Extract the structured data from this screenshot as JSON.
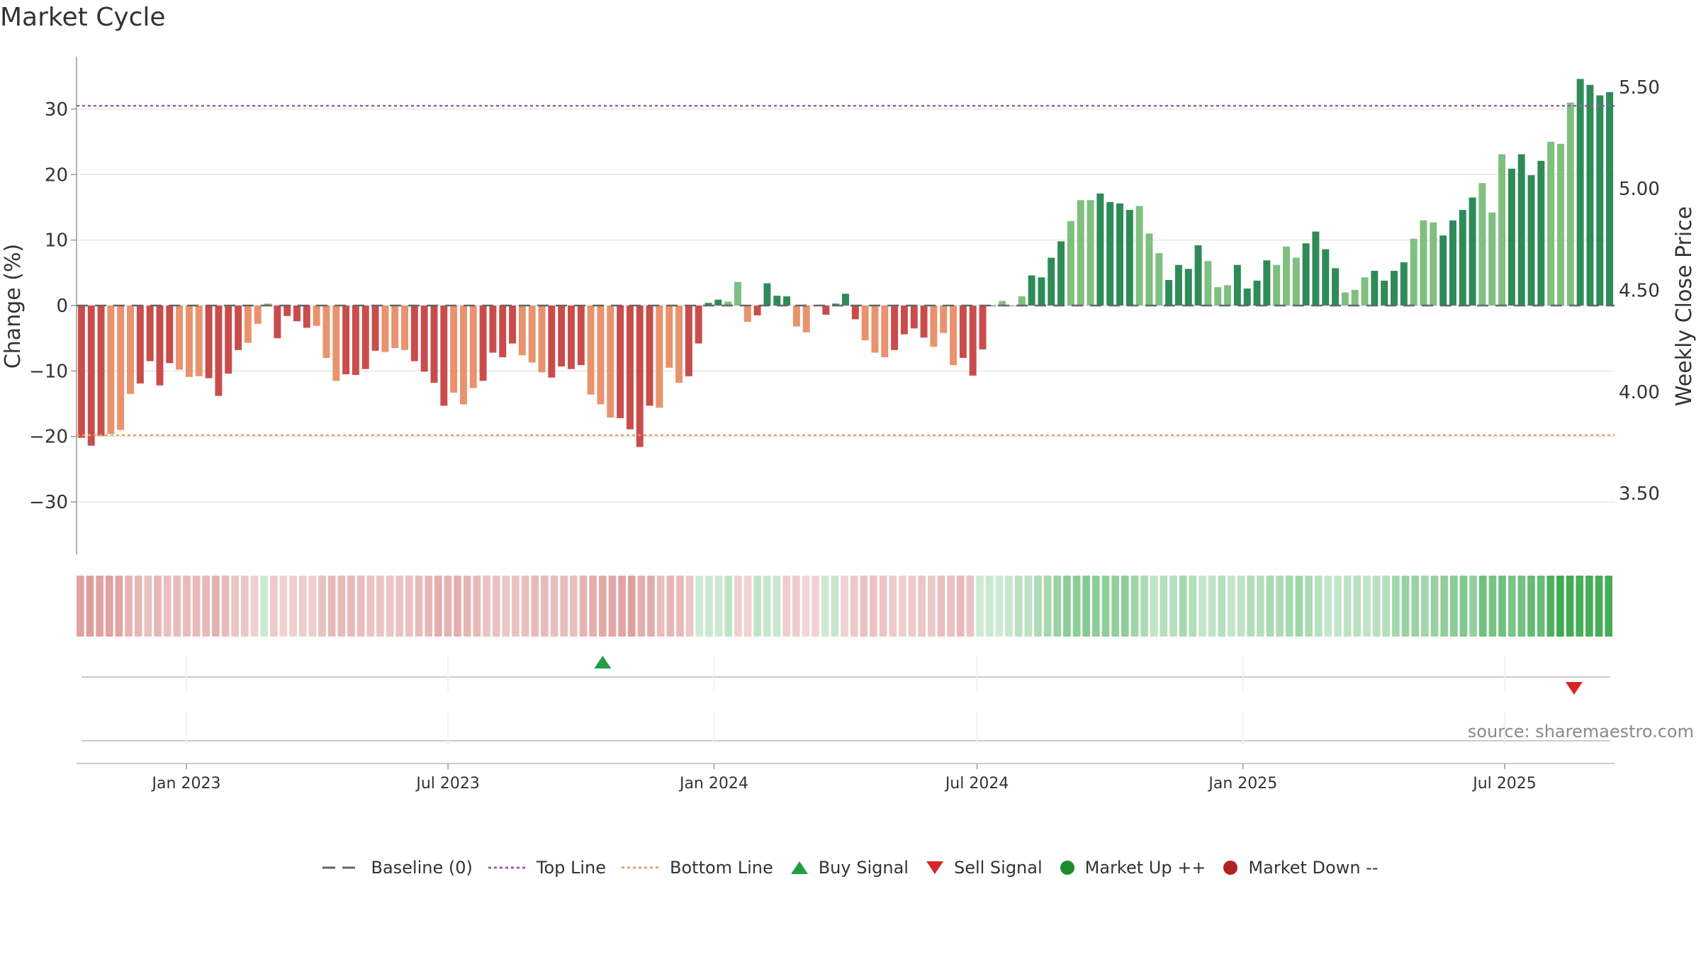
{
  "title": "Market Cycle",
  "source": "source: sharemaestro.com",
  "colors": {
    "neg_dark": "#c94c4c",
    "neg_light": "#e8936e",
    "pos_dark": "#2e8b57",
    "pos_light": "#7fbf7f",
    "top_line": "#9b59b6",
    "bottom_line": "#f0a060",
    "buy": "#1f9e45",
    "sell": "#d62728",
    "market_up": "#1f8b2f",
    "market_down": "#b22222"
  },
  "chart_data": {
    "type": "bar",
    "title": "Market Cycle",
    "ylabel_left": "Change (%)",
    "ylabel_right": "Weekly Close Price",
    "ylim_left": [
      -38,
      38
    ],
    "ylim_right": [
      3.2,
      5.65
    ],
    "yticks_left": [
      "30",
      "20",
      "10",
      "0",
      "−10",
      "−20",
      "−30"
    ],
    "yticks_right": [
      "5.50",
      "5.00",
      "4.50",
      "4.00",
      "3.50"
    ],
    "top_line": 30.5,
    "bottom_line": -19.8,
    "x_start": "2022-10-17",
    "x_end": "2025-09-15",
    "xticks": [
      {
        "label": "Jan 2023",
        "date": "2023-01-01"
      },
      {
        "label": "Jul 2023",
        "date": "2023-07-01"
      },
      {
        "label": "Jan 2024",
        "date": "2024-01-01"
      },
      {
        "label": "Jul 2024",
        "date": "2024-07-01"
      },
      {
        "label": "Jan 2025",
        "date": "2025-01-01"
      },
      {
        "label": "Jul 2025",
        "date": "2025-07-01"
      }
    ],
    "values": [
      -20.2,
      -21.4,
      -19.9,
      -19.6,
      -19.0,
      -13.5,
      -11.9,
      -8.5,
      -12.2,
      -8.8,
      -9.8,
      -10.9,
      -10.8,
      -11.1,
      -13.8,
      -10.4,
      -6.8,
      -5.7,
      -2.8,
      0.3,
      -5.0,
      -1.6,
      -2.4,
      -3.4,
      -3.1,
      -8.0,
      -11.5,
      -10.5,
      -10.6,
      -9.7,
      -6.9,
      -7.1,
      -6.5,
      -6.8,
      -8.5,
      -10.1,
      -11.8,
      -15.3,
      -13.3,
      -15.1,
      -12.6,
      -11.5,
      -7.2,
      -7.9,
      -5.8,
      -7.6,
      -8.7,
      -10.2,
      -11.0,
      -9.3,
      -9.7,
      -9.1,
      -13.6,
      -15.1,
      -17.1,
      -17.2,
      -18.9,
      -21.6,
      -15.3,
      -15.6,
      -9.5,
      -11.8,
      -10.8,
      -5.8,
      0.4,
      0.9,
      0.6,
      3.6,
      -2.5,
      -1.5,
      3.4,
      1.5,
      1.4,
      -3.2,
      -4.1,
      -0.1,
      -1.4,
      0.3,
      1.8,
      -2.1,
      -5.3,
      -7.2,
      -7.9,
      -6.8,
      -4.4,
      -3.5,
      -4.9,
      -6.3,
      -4.2,
      -9.1,
      -8.0,
      -10.7,
      -6.7,
      0.0,
      0.7,
      0.0,
      1.4,
      4.6,
      4.3,
      7.3,
      9.8,
      12.9,
      16.1,
      16.1,
      17.1,
      15.8,
      15.6,
      14.6,
      15.2,
      11.0,
      8.0,
      3.9,
      6.2,
      5.6,
      9.2,
      6.8,
      2.8,
      3.1,
      6.2,
      2.6,
      3.8,
      6.9,
      6.2,
      9.0,
      7.3,
      9.5,
      11.3,
      8.6,
      5.7,
      2.0,
      2.4,
      4.3,
      5.3,
      3.8,
      5.3,
      6.6,
      10.2,
      13.0,
      12.7,
      10.7,
      13.0,
      14.6,
      16.5,
      18.7,
      14.2,
      23.1,
      20.9,
      23.1,
      19.9,
      22.1,
      25.0,
      24.7,
      31.0,
      34.6,
      33.7,
      32.1,
      32.6
    ],
    "cycle_signal": [
      -1,
      -1,
      -1,
      -1,
      -1,
      -1,
      -1,
      -1,
      -1,
      -1,
      -1,
      -1,
      -1,
      -1,
      -1,
      -1,
      -1,
      -1,
      -1,
      1,
      -1,
      -1,
      -1,
      -1,
      -1,
      -1,
      -1,
      -1,
      -1,
      -1,
      -1,
      -1,
      -1,
      -1,
      -1,
      -1,
      -1,
      -1,
      -1,
      -1,
      -1,
      -1,
      -1,
      -1,
      -1,
      -1,
      -1,
      -1,
      -1,
      -1,
      -1,
      -1,
      -1,
      -1,
      -1,
      -1,
      -1,
      -1,
      -1,
      -1,
      -1,
      -1,
      -1,
      -1,
      1,
      1,
      1,
      1,
      -1,
      -1,
      1,
      1,
      1,
      -1,
      -1,
      -1,
      -1,
      1,
      1,
      -1,
      -1,
      -1,
      -1,
      -1,
      -1,
      -1,
      -1,
      -1,
      -1,
      -1,
      -1,
      -1,
      -1,
      1,
      1,
      1,
      1,
      1,
      1,
      1,
      1,
      1,
      1,
      1,
      1,
      1,
      1,
      1,
      1,
      1,
      1,
      1,
      1,
      1,
      1,
      1,
      1,
      1,
      1,
      1,
      1,
      1,
      1,
      1,
      1,
      1,
      1,
      1,
      1,
      1,
      1,
      1,
      1,
      1,
      1,
      1,
      1,
      1,
      1,
      1,
      1,
      1,
      1,
      1,
      1,
      1,
      1,
      1,
      1,
      1,
      1,
      1,
      1,
      1,
      1,
      1,
      1,
      1,
      1
    ],
    "signals": [
      {
        "type": "buy",
        "date": "2023-10-16"
      },
      {
        "type": "sell",
        "date": "2025-08-18"
      }
    ],
    "heat_strip": "weekly cycle intensity, red = down phase, green = up phase",
    "legend": [
      {
        "label": "Baseline (0)",
        "style": "dashed-gray"
      },
      {
        "label": "Top Line",
        "style": "dotted-purple"
      },
      {
        "label": "Bottom Line",
        "style": "dotted-orange"
      },
      {
        "label": "Buy Signal",
        "style": "triangle-up-green"
      },
      {
        "label": "Sell Signal",
        "style": "triangle-down-red"
      },
      {
        "label": "Market Up ++",
        "style": "circle-green"
      },
      {
        "label": "Market Down --",
        "style": "circle-red"
      }
    ]
  }
}
